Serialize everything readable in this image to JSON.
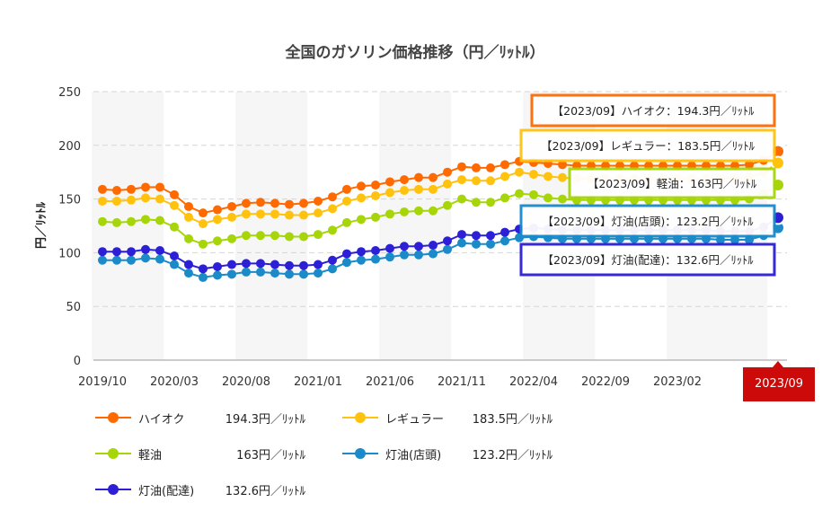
{
  "chart_data": {
    "type": "line",
    "title": "全国のガソリン価格推移（円／ﾘｯﾄﾙ）",
    "ylabel": "円／ﾘｯﾄﾙ",
    "ylim": [
      0,
      250
    ],
    "yticks": [
      0,
      50,
      100,
      150,
      200,
      250
    ],
    "grid": true,
    "legend_position": "bottom",
    "x": [
      "2019/10",
      "2019/11",
      "2019/12",
      "2020/01",
      "2020/02",
      "2020/03",
      "2020/04",
      "2020/05",
      "2020/06",
      "2020/07",
      "2020/08",
      "2020/09",
      "2020/10",
      "2020/11",
      "2020/12",
      "2021/01",
      "2021/02",
      "2021/03",
      "2021/04",
      "2021/05",
      "2021/06",
      "2021/07",
      "2021/08",
      "2021/09",
      "2021/10",
      "2021/11",
      "2021/12",
      "2022/01",
      "2022/02",
      "2022/03",
      "2022/04",
      "2022/05",
      "2022/06",
      "2022/07",
      "2022/08",
      "2022/09",
      "2022/10",
      "2022/11",
      "2022/12",
      "2023/01",
      "2023/02",
      "2023/03",
      "2023/04",
      "2023/05",
      "2023/06",
      "2023/07",
      "2023/08",
      "2023/09"
    ],
    "xtick_labels": [
      "2019/10",
      "2020/03",
      "2020/08",
      "2021/01",
      "2021/06",
      "2021/11",
      "2022/04",
      "2022/09",
      "2023/02",
      "2023/09"
    ],
    "highlight_x": "2023/09",
    "series": [
      {
        "name": "ハイオク",
        "color": "#ff6a00",
        "latest": "194.3円／ﾘｯﾄﾙ",
        "tooltip": "【2023/09】ハイオク：194.3円／ﾘｯﾄﾙ",
        "values": [
          159,
          158,
          159,
          161,
          161,
          154,
          143,
          137,
          140,
          143,
          146,
          147,
          146,
          145,
          146,
          148,
          152,
          159,
          162,
          163,
          166,
          168,
          170,
          170,
          175,
          180,
          179,
          179,
          182,
          185,
          184,
          183,
          182,
          181,
          181,
          181,
          181,
          181,
          181,
          181,
          181,
          181,
          181,
          181,
          181,
          182,
          186,
          194.3
        ]
      },
      {
        "name": "レギュラー",
        "color": "#ffc20e",
        "latest": "183.5円／ﾘｯﾄﾙ",
        "tooltip": "【2023/09】レギュラー：183.5円／ﾘｯﾄﾙ",
        "values": [
          148,
          148,
          149,
          151,
          150,
          144,
          133,
          127,
          131,
          133,
          136,
          136,
          136,
          135,
          135,
          137,
          141,
          148,
          151,
          153,
          156,
          158,
          159,
          159,
          164,
          168,
          167,
          167,
          171,
          175,
          173,
          171,
          170,
          169,
          169,
          169,
          169,
          169,
          169,
          169,
          169,
          169,
          169,
          169,
          169,
          170,
          175,
          183.5
        ]
      },
      {
        "name": "軽油",
        "color": "#a6d609",
        "latest": "163円／ﾘｯﾄﾙ",
        "tooltip": "【2023/09】軽油：163円／ﾘｯﾄﾙ",
        "values": [
          129,
          128,
          129,
          131,
          130,
          124,
          113,
          108,
          111,
          113,
          116,
          116,
          116,
          115,
          115,
          117,
          121,
          128,
          131,
          133,
          136,
          138,
          139,
          139,
          144,
          150,
          147,
          147,
          151,
          155,
          154,
          151,
          150,
          149,
          149,
          149,
          149,
          149,
          149,
          149,
          149,
          149,
          149,
          149,
          149,
          150,
          155,
          163
        ]
      },
      {
        "name": "灯油(店頭)",
        "color": "#1a8ac9",
        "latest": "123.2円／ﾘｯﾄﾙ",
        "tooltip": "【2023/09】灯油(店頭)：123.2円／ﾘｯﾄﾙ",
        "values": [
          93,
          93,
          93,
          95,
          94,
          89,
          81,
          77,
          79,
          80,
          82,
          82,
          81,
          80,
          80,
          81,
          85,
          91,
          93,
          94,
          96,
          98,
          98,
          99,
          103,
          109,
          108,
          108,
          111,
          114,
          115,
          114,
          113,
          113,
          113,
          113,
          113,
          113,
          113,
          113,
          113,
          113,
          113,
          112,
          112,
          112,
          116,
          123.2
        ]
      },
      {
        "name": "灯油(配達)",
        "color": "#2c1fd6",
        "latest": "132.6円／ﾘｯﾄﾙ",
        "tooltip": "【2023/09】灯油(配達)：132.6円／ﾘｯﾄﾙ",
        "values": [
          101,
          101,
          101,
          103,
          102,
          97,
          89,
          85,
          87,
          89,
          90,
          90,
          89,
          88,
          88,
          89,
          93,
          99,
          101,
          102,
          104,
          106,
          106,
          107,
          111,
          117,
          116,
          116,
          119,
          122,
          123,
          122,
          121,
          121,
          121,
          121,
          121,
          121,
          121,
          121,
          121,
          121,
          121,
          120,
          120,
          120,
          124,
          132.6
        ]
      }
    ]
  }
}
